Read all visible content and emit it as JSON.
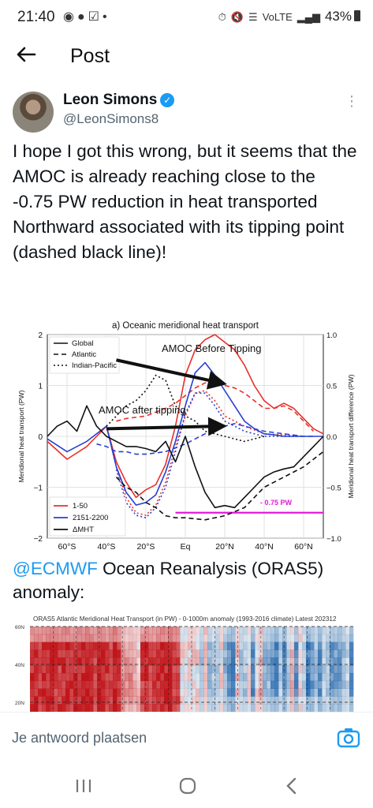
{
  "status_bar": {
    "time": "21:40",
    "left_icons": [
      "facebook-icon",
      "messenger-icon",
      "check-square-icon",
      "dot-icon"
    ],
    "right_text": "43%",
    "network": "VoLTE"
  },
  "header": {
    "title": "Post"
  },
  "author": {
    "name": "Leon Simons",
    "handle": "@LeonSimons8"
  },
  "post": {
    "text": "I hope I got this wrong, but it seems that the AMOC is already reaching close to the -0.75 PW reduction in heat transported Northward associated with its tipping point (dashed black line)!",
    "mention": "@ECMWF",
    "text2": " Ocean Reanalysis (ORAS5) anomaly:"
  },
  "chart_data": [
    {
      "type": "line",
      "title": "a) Oceanic meridional heat transport",
      "ylabel": "Meridional heat transport (PW)",
      "ylabel_right": "Meridional heat transport difference (PW)",
      "xlabel": "",
      "xticks": [
        "60°S",
        "40°S",
        "20°S",
        "Eq",
        "20°N",
        "40°N",
        "60°N"
      ],
      "yticks_left": [
        "2",
        "1",
        "0",
        "−1",
        "−2"
      ],
      "yticks_right": [
        "1.0",
        "0.5",
        "0.0",
        "−0.5",
        "−1.0"
      ],
      "ylim": [
        -2,
        2
      ],
      "ylim_right": [
        -1,
        1
      ],
      "xlim": [
        -70,
        70
      ],
      "legend_styles": [
        {
          "label": "Global",
          "dash": "solid"
        },
        {
          "label": "Atlantic",
          "dash": "dashed"
        },
        {
          "label": "Indian-Pacific",
          "dash": "dotted"
        }
      ],
      "legend_periods": [
        {
          "label": "1-50",
          "color": "#e8302b"
        },
        {
          "label": "2151-2200",
          "color": "#2a3fd0"
        },
        {
          "label": "ΔMHT",
          "color": "#111111"
        }
      ],
      "annotations": {
        "before": "AMOC Before Tipping",
        "after": "AMOC after tipping",
        "threshold": "- 0.75 PW"
      },
      "threshold_value": -0.75,
      "series": [
        {
          "period": "1-50",
          "basin": "Global",
          "color": "#e8302b",
          "dash": "solid",
          "x": [
            -70,
            -60,
            -50,
            -45,
            -40,
            -35,
            -30,
            -25,
            -20,
            -15,
            -10,
            -5,
            0,
            5,
            10,
            15,
            20,
            25,
            30,
            35,
            40,
            45,
            50,
            55,
            60,
            65,
            70
          ],
          "y": [
            -0.1,
            -0.45,
            -0.2,
            0.0,
            0.2,
            -0.5,
            -0.9,
            -1.2,
            -1.05,
            -0.95,
            -0.55,
            0.2,
            1.2,
            1.7,
            1.9,
            2.0,
            1.85,
            1.7,
            1.4,
            1.0,
            0.7,
            0.55,
            0.65,
            0.55,
            0.35,
            0.15,
            0.05
          ]
        },
        {
          "period": "1-50",
          "basin": "Atlantic",
          "color": "#e8302b",
          "dash": "dashed",
          "x": [
            -35,
            -30,
            -20,
            -10,
            -5,
            0,
            5,
            10,
            15,
            20,
            25,
            30,
            35,
            40,
            45,
            50,
            55,
            60,
            65
          ],
          "y": [
            0.3,
            0.35,
            0.4,
            0.55,
            0.65,
            0.8,
            0.95,
            1.05,
            1.05,
            1.0,
            0.95,
            0.85,
            0.7,
            0.55,
            0.55,
            0.6,
            0.5,
            0.3,
            0.1
          ]
        },
        {
          "period": "1-50",
          "basin": "Indian-Pacific",
          "color": "#e8302b",
          "dash": "dotted",
          "x": [
            -35,
            -30,
            -25,
            -20,
            -15,
            -10,
            -5,
            0,
            5,
            10,
            15,
            20,
            30,
            40,
            50,
            60
          ],
          "y": [
            -0.6,
            -1.2,
            -1.5,
            -1.55,
            -1.35,
            -0.9,
            -0.2,
            0.4,
            0.85,
            0.9,
            0.7,
            0.4,
            0.2,
            0.05,
            0.03,
            0.0
          ]
        },
        {
          "period": "2151-2200",
          "basin": "Global",
          "color": "#2a3fd0",
          "dash": "solid",
          "x": [
            -70,
            -60,
            -50,
            -45,
            -40,
            -35,
            -30,
            -25,
            -20,
            -15,
            -10,
            -5,
            0,
            5,
            10,
            15,
            20,
            25,
            30,
            35,
            40,
            45,
            50,
            55,
            60,
            65,
            70
          ],
          "y": [
            -0.05,
            -0.3,
            -0.1,
            0.05,
            0.2,
            -0.6,
            -1.1,
            -1.35,
            -1.3,
            -1.15,
            -0.7,
            -0.1,
            0.6,
            1.25,
            1.45,
            1.2,
            0.9,
            0.6,
            0.3,
            0.15,
            0.05,
            0.03,
            0.0,
            0.0,
            0.0,
            0.0,
            0.0
          ]
        },
        {
          "period": "2151-2200",
          "basin": "Atlantic",
          "color": "#2a3fd0",
          "dash": "dashed",
          "x": [
            -45,
            -40,
            -35,
            -30,
            -25,
            -20,
            -10,
            0,
            10,
            15,
            20,
            25,
            30,
            40,
            50,
            60,
            65
          ],
          "y": [
            -0.15,
            -0.2,
            -0.3,
            -0.3,
            -0.35,
            -0.35,
            -0.3,
            -0.15,
            0.05,
            0.15,
            0.2,
            0.25,
            0.2,
            0.1,
            0.05,
            0.0,
            0.0
          ]
        },
        {
          "period": "2151-2200",
          "basin": "Indian-Pacific",
          "color": "#2a3fd0",
          "dash": "dotted",
          "x": [
            -35,
            -30,
            -25,
            -20,
            -15,
            -10,
            -5,
            0,
            5,
            10,
            15,
            20,
            30,
            40,
            50,
            60
          ],
          "y": [
            -0.65,
            -1.3,
            -1.55,
            -1.6,
            -1.4,
            -1.0,
            -0.3,
            0.45,
            0.85,
            0.85,
            0.6,
            0.3,
            0.1,
            0.0,
            0.0,
            0.0
          ]
        },
        {
          "period": "ΔMHT",
          "basin": "Global",
          "color": "#111111",
          "dash": "solid",
          "x": [
            -70,
            -65,
            -60,
            -55,
            -50,
            -45,
            -40,
            -35,
            -30,
            -25,
            -20,
            -15,
            -10,
            -5,
            0,
            5,
            10,
            15,
            20,
            25,
            30,
            35,
            40,
            45,
            50,
            55,
            60,
            65,
            70
          ],
          "y": [
            0.0,
            0.1,
            0.15,
            0.05,
            0.3,
            0.1,
            0.0,
            -0.05,
            -0.1,
            -0.1,
            -0.12,
            -0.15,
            -0.05,
            -0.25,
            0.0,
            -0.3,
            -0.55,
            -0.7,
            -0.68,
            -0.7,
            -0.6,
            -0.5,
            -0.4,
            -0.35,
            -0.32,
            -0.3,
            -0.2,
            -0.1,
            0.0
          ]
        },
        {
          "period": "ΔMHT",
          "basin": "Atlantic",
          "color": "#111111",
          "dash": "dashed",
          "x": [
            -35,
            -30,
            -25,
            -20,
            -15,
            -10,
            -5,
            0,
            10,
            20,
            30,
            40,
            50,
            60,
            70
          ],
          "y": [
            -0.4,
            -0.5,
            -0.55,
            -0.65,
            -0.7,
            -0.78,
            -0.8,
            -0.8,
            -0.82,
            -0.78,
            -0.7,
            -0.5,
            -0.4,
            -0.3,
            -0.15
          ]
        },
        {
          "period": "ΔMHT",
          "basin": "Indian-Pacific",
          "color": "#111111",
          "dash": "dotted",
          "x": [
            -40,
            -35,
            -30,
            -25,
            -20,
            -15,
            -10,
            -5,
            0,
            5,
            10,
            20,
            30,
            40
          ],
          "y": [
            0.1,
            0.2,
            0.3,
            0.35,
            0.45,
            0.6,
            0.55,
            0.3,
            0.2,
            0.15,
            0.05,
            0.0,
            -0.05,
            0.0
          ]
        }
      ]
    },
    {
      "type": "heatmap",
      "title": "ORAS5 Atlantic Meridional Heat Transport (in PW) - 0-1000m anomaly (1993-2016 climate) Latest 202312",
      "yticks": [
        "60N",
        "40N",
        "20N"
      ],
      "colors": {
        "positive": "#c0161b",
        "negative": "#2166ac"
      }
    }
  ],
  "reply": {
    "placeholder": "Je antwoord plaatsen"
  },
  "nav": {
    "recents": "recents-icon",
    "home": "home-icon",
    "back": "back-icon"
  }
}
